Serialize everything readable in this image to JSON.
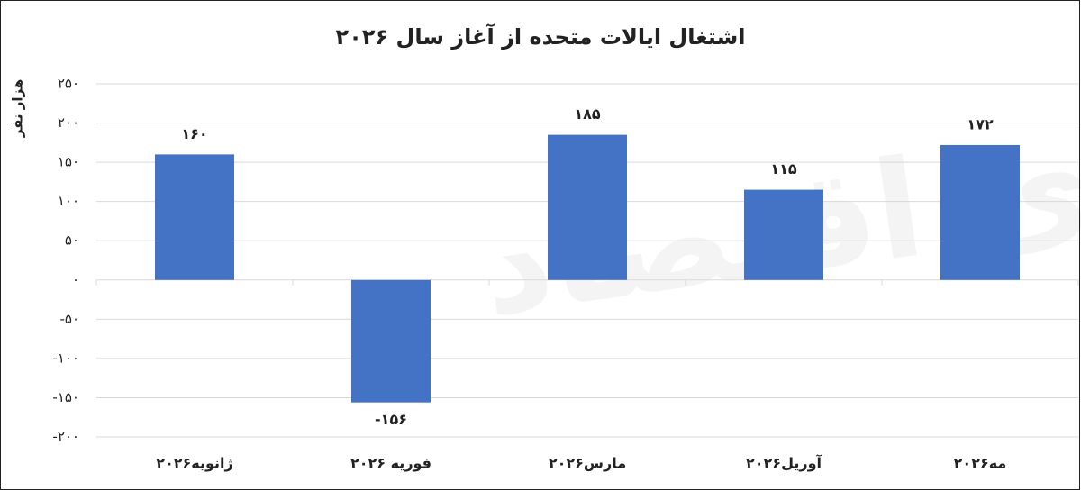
{
  "chart_data": {
    "type": "bar",
    "title": "اشتغال ایالات متحده از آغاز سال ۲۰۲۶",
    "y_label": "هزار نفر",
    "watermark": "دنیای اقتصاد",
    "categories": [
      "ژانویه۲۰۲۶",
      "فوریه ۲۰۲۶",
      "مارس۲۰۲۶",
      "آوریل۲۰۲۶",
      "مه۲۰۲۶"
    ],
    "values": [
      160,
      -156,
      185,
      115,
      172
    ],
    "value_labels": [
      "۱۶۰",
      "-۱۵۶",
      "۱۸۵",
      "۱۱۵",
      "۱۷۲"
    ],
    "color": "#4472c4",
    "ylim": [
      -200,
      250
    ],
    "yticks": [
      {
        "value": -200,
        "label": "-۲۰۰"
      },
      {
        "value": -150,
        "label": "-۱۵۰"
      },
      {
        "value": -100,
        "label": "-۱۰۰"
      },
      {
        "value": -50,
        "label": "-۵۰"
      },
      {
        "value": 0,
        "label": "۰"
      },
      {
        "value": 50,
        "label": "۵۰"
      },
      {
        "value": 100,
        "label": "۱۰۰"
      },
      {
        "value": 150,
        "label": "۱۵۰"
      },
      {
        "value": 200,
        "label": "۲۰۰"
      },
      {
        "value": 250,
        "label": "۲۵۰"
      }
    ],
    "grid": true
  }
}
